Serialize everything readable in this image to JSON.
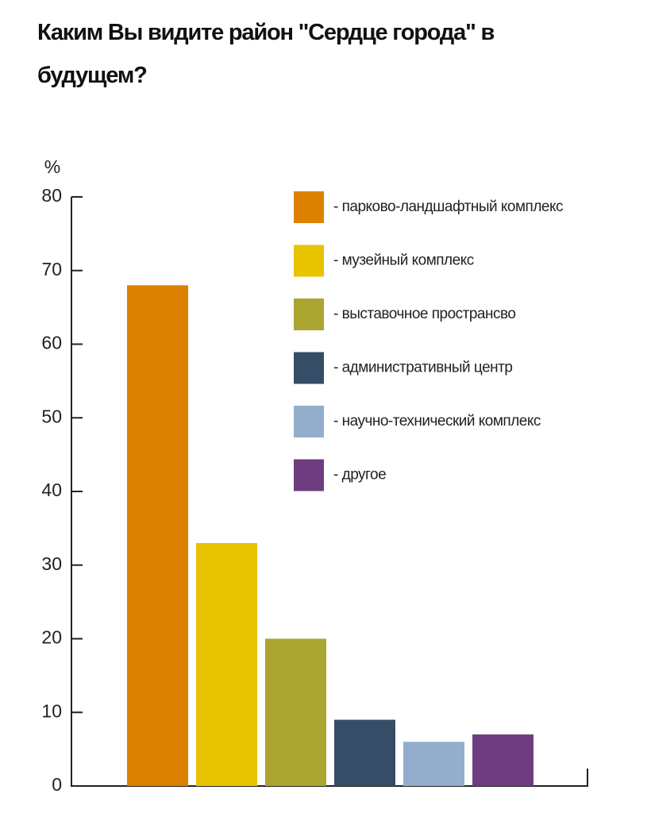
{
  "chart_data": {
    "type": "bar",
    "title": "Каким Вы видите район \"Сердце города\" в будущем?",
    "y_label": "%",
    "categories": [
      null
    ],
    "series": [
      {
        "name": "- парково-ландшафтный комплекс",
        "color": "#dc8200",
        "values": [
          68
        ]
      },
      {
        "name": "- музейный комплекс",
        "color": "#e8c300",
        "values": [
          33
        ]
      },
      {
        "name": "- выставочное пространсво",
        "color": "#aba532",
        "values": [
          20
        ]
      },
      {
        "name": "- административный центр",
        "color": "#364d68",
        "values": [
          9
        ]
      },
      {
        "name": "- научно-технический комплекс",
        "color": "#93adcc",
        "values": [
          6
        ]
      },
      {
        "name": "- другое",
        "color": "#6d3d80",
        "values": [
          7
        ]
      }
    ],
    "ylim": [
      0,
      80
    ],
    "yticks": [
      0,
      10,
      20,
      30,
      40,
      50,
      60,
      70,
      80
    ]
  }
}
